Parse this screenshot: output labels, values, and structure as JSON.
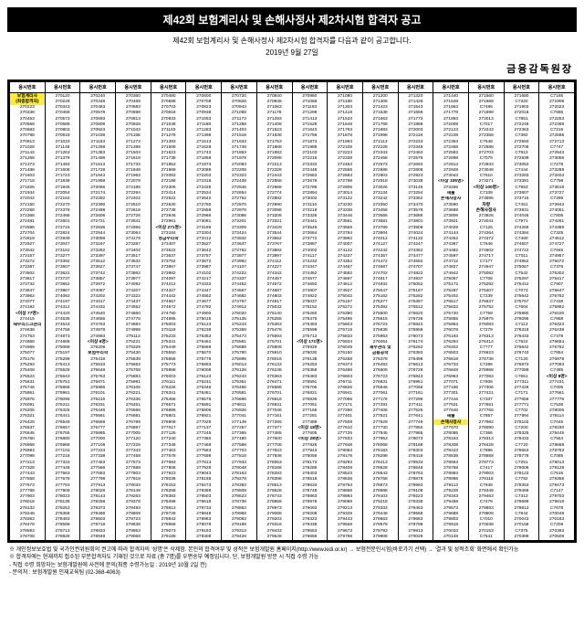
{
  "title": "제42회 보험계리사 및 손해사정사 제2차시험 합격자 공고",
  "subtitle": "제42회 보험계리사 및 손해사정사 제2차시험 합격자를 다음과 같이 공고합니다.",
  "date": "2019년 9월 27일",
  "org": "금융감독원장",
  "header_label": "응시번호",
  "num_cols": 16,
  "num_rows": 78,
  "base_prefix": "27",
  "specials": {
    "0-0": {
      "text": "보험계리사",
      "cls": "hl-yellow"
    },
    "1-0": {
      "text": "(최종합격자)",
      "cls": "hl-yellow"
    },
    "38-0": {
      "text": "<이상 77명>",
      "cls": "hl-bold"
    },
    "40-0": {
      "text": "재무리스크관리",
      "cls": "hl-bold"
    },
    "43-2": {
      "text": "<이상 6명>",
      "cls": "hl-bold"
    },
    "45-2": {
      "text": "보험수리학",
      "cls": "hl-bold"
    },
    "23-4": {
      "text": "<이상 271명>",
      "cls": "hl-bold"
    },
    "25-4": {
      "text": "영금수리학",
      "cls": "hl-bold"
    },
    "43-8": {
      "text": "<이상 171명>",
      "cls": "hl-bold"
    },
    "58-8": {
      "text": "<이상 18명>",
      "cls": "hl-bold"
    },
    "60-8": {
      "text": "<이상 28명>",
      "cls": "hl-bold"
    },
    "44-10": {
      "text": "재무관리 및",
      "cls": "hl-bold"
    },
    "45-10": {
      "text": "금융공학",
      "cls": "hl-bold"
    },
    "15-12": {
      "text": "<이상 105명>",
      "cls": "hl-bold"
    },
    "17-12": {
      "text": "재물",
      "cls": "hl-bold"
    },
    "18-12": {
      "text": "손해사정사",
      "cls": "hl-bold"
    },
    "56-12": {
      "text": "재물",
      "cls": "hl-bold"
    },
    "57-12": {
      "text": "손해사정사",
      "cls": "hl-yellow"
    },
    "16-13": {
      "text": "<이상 100명>",
      "cls": "hl-bold"
    },
    "19-13": {
      "text": "차량",
      "cls": "hl-bold"
    },
    "20-13": {
      "text": "손해사정사",
      "cls": "hl-bold"
    },
    "49-15": {
      "text": "<이상 8명>",
      "cls": "hl-bold"
    }
  },
  "footer": [
    "※ 개인정보보호법 및 국가인권위원회의 권고에 따라 합격자의 '성명'은 삭제함. 본인의 합격여부 및 성적은 보험개발원 홈페이지(http://www.kidi.or.kr) → 보험전문인시험(바로가기 선택) → '결과 및 성적조회' 화면에서 확인가능",
    "※ 합격자에는 현재까지 접수된 부분합격자도 기재된 것으로 자료 (총 7명)를 우편송부 예정입니다. 단, 보험개발원 방문 시 직접 수령 가능",
    "   - 직접 수령 희망자는 보험개발원에 사전에 문의(최종 수령가능일 : 2019년 10월 2일 전)",
    "   - 문의처 : 보험개발원 인재교육팀 (02-368-4063)"
  ]
}
